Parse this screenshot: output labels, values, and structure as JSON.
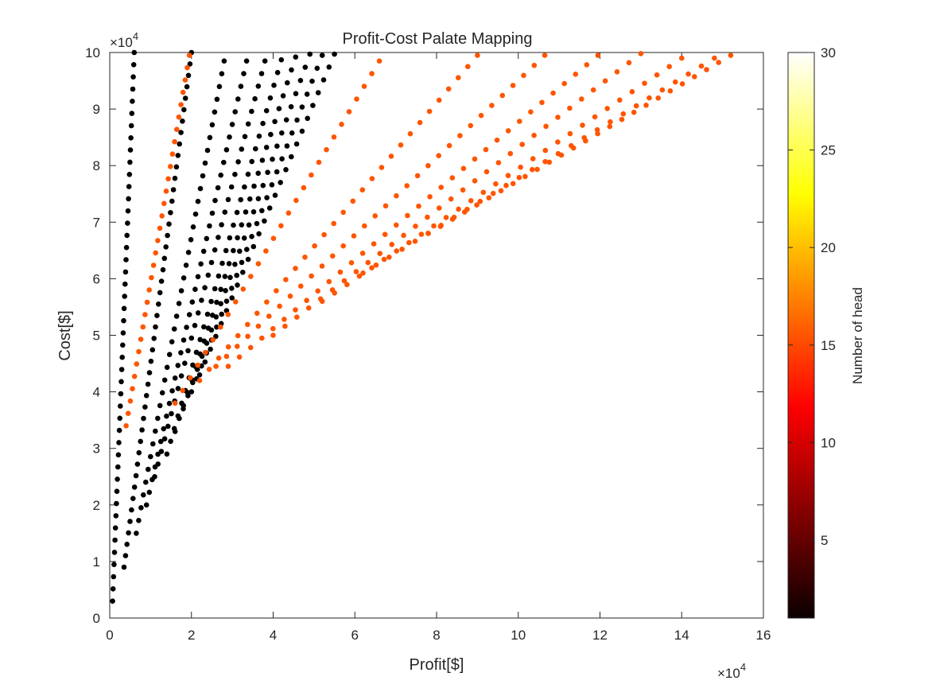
{
  "chart_data": {
    "type": "scatter",
    "title": "Profit-Cost Palate Mapping",
    "xlabel": "Profit[$]",
    "ylabel": "Cost[$]",
    "xlim": [
      0,
      160000
    ],
    "ylim": [
      0,
      100000
    ],
    "x_ticks": [
      0,
      20000,
      40000,
      60000,
      80000,
      100000,
      120000,
      140000,
      160000
    ],
    "x_tick_labels": [
      "0",
      "2",
      "4",
      "6",
      "8",
      "10",
      "12",
      "14",
      "16"
    ],
    "y_ticks": [
      0,
      10000,
      20000,
      30000,
      40000,
      50000,
      60000,
      70000,
      80000,
      90000,
      100000
    ],
    "y_tick_labels": [
      "0",
      "1",
      "2",
      "3",
      "4",
      "5",
      "6",
      "7",
      "8",
      "9",
      "10"
    ],
    "x_exponent": {
      "base": "×10",
      "power": "4"
    },
    "y_exponent": {
      "base": "×10",
      "power": "4"
    },
    "grid": false,
    "colorbar": {
      "label": "Number of head",
      "colormap": "hot",
      "range": [
        1,
        30
      ],
      "ticks": [
        5,
        10,
        15,
        20,
        25,
        30
      ],
      "tick_labels": [
        "5",
        "10",
        "15",
        "20",
        "25",
        "30"
      ]
    },
    "series": [
      {
        "color_value": 1,
        "color": "#000000",
        "start": [
          700,
          3000
        ],
        "end": [
          6000,
          100000
        ],
        "points": 46
      },
      {
        "color_value": 1,
        "color": "#000000",
        "start": [
          3500,
          9000
        ],
        "end": [
          20000,
          100000
        ],
        "points": 46
      },
      {
        "color_value": 1,
        "color": "#000000",
        "start": [
          6500,
          15000
        ],
        "end": [
          28000,
          98500
        ],
        "points": 38
      },
      {
        "color_value": 1,
        "color": "#000000",
        "start": [
          9000,
          20000
        ],
        "end": [
          33500,
          98500
        ],
        "points": 36
      },
      {
        "color_value": 1,
        "color": "#000000",
        "start": [
          11000,
          25000
        ],
        "end": [
          38000,
          98500
        ],
        "points": 34
      },
      {
        "color_value": 1,
        "color": "#000000",
        "start": [
          14000,
          29000
        ],
        "end": [
          42000,
          98700
        ],
        "points": 32
      },
      {
        "color_value": 1,
        "color": "#000000",
        "start": [
          16000,
          33000
        ],
        "end": [
          45500,
          99200
        ],
        "points": 30
      },
      {
        "color_value": 1,
        "color": "#000000",
        "start": [
          18000,
          37000
        ],
        "end": [
          49000,
          99700
        ],
        "points": 28
      },
      {
        "color_value": 1,
        "color": "#000000",
        "start": [
          20000,
          40000
        ],
        "end": [
          52000,
          99500
        ],
        "points": 27
      },
      {
        "color_value": 1,
        "color": "#000000",
        "start": [
          22000,
          43000
        ],
        "end": [
          55000,
          99700
        ],
        "points": 26
      },
      {
        "color_value": 16,
        "color": "#ff5500",
        "start": [
          4000,
          34000
        ],
        "end": [
          19500,
          99500
        ],
        "points": 31
      },
      {
        "color_value": 16,
        "color": "#ff5500",
        "start": [
          16000,
          38000
        ],
        "end": [
          66000,
          98500
        ],
        "points": 28
      },
      {
        "color_value": 16,
        "color": "#ff5500",
        "start": [
          22000,
          42000
        ],
        "end": [
          90000,
          99500
        ],
        "points": 30
      },
      {
        "color_value": 16,
        "color": "#ff5500",
        "start": [
          26000,
          44500
        ],
        "end": [
          106500,
          99500
        ],
        "points": 32
      },
      {
        "color_value": 16,
        "color": "#ff5500",
        "start": [
          29000,
          44500
        ],
        "end": [
          119500,
          99500
        ],
        "points": 34
      },
      {
        "color_value": 16,
        "color": "#ff5500",
        "start": [
          40000,
          50000
        ],
        "end": [
          130000,
          99800
        ],
        "points": 32
      },
      {
        "color_value": 16,
        "color": "#ff5500",
        "start": [
          52000,
          56000
        ],
        "end": [
          140000,
          99000
        ],
        "points": 30
      },
      {
        "color_value": 16,
        "color": "#ff5500",
        "start": [
          62000,
          61000
        ],
        "end": [
          148000,
          99000
        ],
        "points": 28
      },
      {
        "color_value": 16,
        "color": "#ff5500",
        "start": [
          78000,
          68000
        ],
        "end": [
          152000,
          99500
        ],
        "points": 26
      }
    ]
  }
}
